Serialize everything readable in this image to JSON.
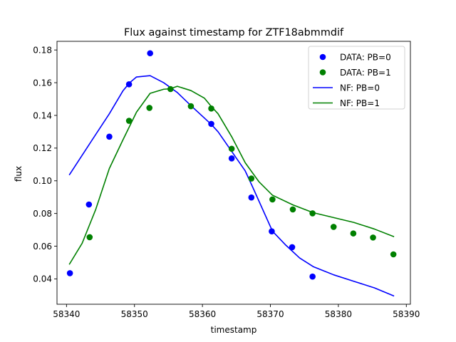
{
  "chart_data": {
    "type": "scatter",
    "title": "Flux against timestamp for ZTF18abmmdif",
    "xlabel": "timestamp",
    "ylabel": "flux",
    "xlim": [
      58338.6,
      58390.6
    ],
    "ylim": [
      0.0245,
      0.1853
    ],
    "xticks": [
      58340,
      58350,
      58360,
      58370,
      58380,
      58390
    ],
    "yticks": [
      0.04,
      0.06,
      0.08,
      0.1,
      0.12,
      0.14,
      0.16,
      0.18
    ],
    "ytick_labels": [
      "0.04",
      "0.06",
      "0.08",
      "0.10",
      "0.12",
      "0.14",
      "0.16",
      "0.18"
    ],
    "grid": false,
    "legend_position": "top-right",
    "colors": {
      "pb0": "#0000ff",
      "pb1": "#008000"
    },
    "series": [
      {
        "name": "DATA: PB=0",
        "kind": "points",
        "color_key": "pb0",
        "x": [
          58340.5,
          58343.3,
          58346.3,
          58349.2,
          58352.3,
          58361.3,
          58364.3,
          58367.2,
          58370.2,
          58373.2,
          58376.2
        ],
        "y": [
          0.0435,
          0.0855,
          0.127,
          0.159,
          0.178,
          0.1348,
          0.1137,
          0.0898,
          0.0691,
          0.0594,
          0.0414
        ]
      },
      {
        "name": "DATA: PB=1",
        "kind": "points",
        "color_key": "pb1",
        "x": [
          58343.4,
          58349.2,
          58352.2,
          58355.3,
          58358.3,
          58361.3,
          58364.3,
          58367.2,
          58370.3,
          58373.3,
          58376.2,
          58379.3,
          58382.2,
          58385.1,
          58388.1
        ],
        "y": [
          0.0655,
          0.1367,
          0.1446,
          0.1561,
          0.1456,
          0.1442,
          0.1196,
          0.1014,
          0.0886,
          0.0825,
          0.0801,
          0.0718,
          0.0678,
          0.0653,
          0.055
        ]
      },
      {
        "name": "NF: PB=0",
        "kind": "line",
        "color_key": "pb0",
        "x": [
          58340.4,
          58343.3,
          58346.3,
          58348.3,
          58349.3,
          58350.3,
          58352.3,
          58354.3,
          58356.3,
          58358.3,
          58361.3,
          58362.3,
          58364.3,
          58366.3,
          58367.3,
          58370.3,
          58372.3,
          58374.3,
          58376.3,
          58379.3,
          58382.3,
          58385.3,
          58388.2
        ],
        "y": [
          0.1035,
          0.122,
          0.141,
          0.155,
          0.16,
          0.1635,
          0.1643,
          0.16,
          0.154,
          0.146,
          0.1345,
          0.13,
          0.118,
          0.106,
          0.097,
          0.0692,
          0.0605,
          0.0528,
          0.0475,
          0.0425,
          0.0385,
          0.0345,
          0.0295
        ]
      },
      {
        "name": "NF: PB=1",
        "kind": "line",
        "color_key": "pb1",
        "x": [
          58340.4,
          58342.3,
          58344.3,
          58346.3,
          58348.3,
          58350.3,
          58352.3,
          58354.3,
          58355.3,
          58356.3,
          58358.3,
          58360.3,
          58361.3,
          58362.3,
          58364.3,
          58366.3,
          58368.3,
          58370.3,
          58373.3,
          58376.3,
          58379.3,
          58382.3,
          58385.3,
          58388.2
        ],
        "y": [
          0.0488,
          0.0618,
          0.0825,
          0.1075,
          0.125,
          0.142,
          0.1535,
          0.156,
          0.1563,
          0.1578,
          0.1552,
          0.1505,
          0.1455,
          0.141,
          0.127,
          0.111,
          0.0995,
          0.0912,
          0.0853,
          0.0805,
          0.0775,
          0.0745,
          0.0705,
          0.0658
        ]
      }
    ]
  }
}
